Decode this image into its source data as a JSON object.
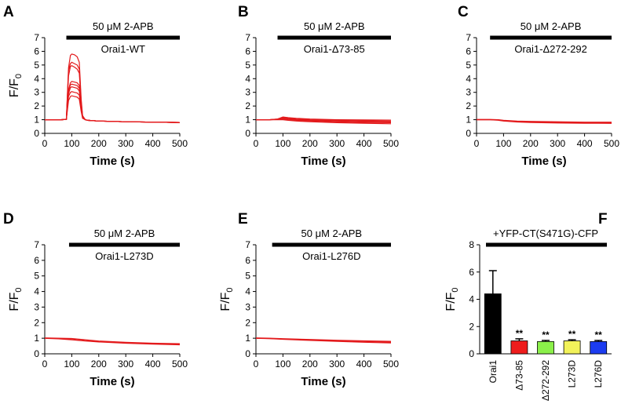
{
  "colors": {
    "trace": "#e31a1c",
    "axis": "#000000"
  },
  "chart_data": [
    {
      "type": "line",
      "panel_letter": "A",
      "treatment": "50 μM 2-APB",
      "construct": "Orai1-WT",
      "xlabel": "Time (s)",
      "ylabel": "F/F",
      "ylabel_sub": "0",
      "xlim": [
        0,
        500
      ],
      "ylim": [
        0,
        7
      ],
      "xticks": [
        "0",
        "100",
        "200",
        "300",
        "400",
        "500"
      ],
      "yticks": [
        "0",
        "1",
        "2",
        "3",
        "4",
        "5",
        "6",
        "7"
      ],
      "treatment_bar": [
        80,
        500
      ],
      "series": [
        {
          "x": [
            0,
            60,
            80,
            88,
            95,
            100,
            110,
            120,
            128,
            135,
            140,
            150,
            160,
            200,
            300,
            400,
            500
          ],
          "y": [
            1.0,
            1.0,
            1.02,
            4.8,
            5.7,
            5.8,
            5.75,
            5.6,
            5.2,
            2.5,
            1.3,
            1.0,
            0.95,
            0.9,
            0.85,
            0.82,
            0.8
          ]
        },
        {
          "x": [
            0,
            60,
            80,
            88,
            95,
            100,
            110,
            120,
            128,
            135,
            140,
            150,
            160,
            200,
            300,
            400,
            500
          ],
          "y": [
            1.0,
            1.0,
            1.02,
            4.6,
            5.1,
            5.2,
            5.1,
            5.0,
            4.7,
            2.3,
            1.2,
            1.0,
            0.95,
            0.9,
            0.85,
            0.82,
            0.8
          ]
        },
        {
          "x": [
            0,
            60,
            80,
            88,
            95,
            100,
            110,
            120,
            128,
            135,
            140,
            150,
            160,
            200,
            300,
            400,
            500
          ],
          "y": [
            1.0,
            1.0,
            1.02,
            4.2,
            4.9,
            4.95,
            4.85,
            4.7,
            4.4,
            2.2,
            1.2,
            1.0,
            0.95,
            0.9,
            0.85,
            0.82,
            0.8
          ]
        },
        {
          "x": [
            0,
            60,
            80,
            88,
            95,
            100,
            110,
            120,
            128,
            135,
            140,
            150,
            160,
            200,
            300,
            400,
            500
          ],
          "y": [
            1.0,
            1.0,
            1.02,
            3.2,
            3.7,
            3.8,
            3.75,
            3.7,
            3.5,
            2.0,
            1.2,
            1.0,
            0.95,
            0.9,
            0.85,
            0.82,
            0.8
          ]
        },
        {
          "x": [
            0,
            60,
            80,
            88,
            95,
            100,
            110,
            120,
            128,
            135,
            140,
            150,
            160,
            200,
            300,
            400,
            500
          ],
          "y": [
            1.0,
            1.0,
            1.02,
            3.1,
            3.55,
            3.6,
            3.55,
            3.5,
            3.3,
            1.9,
            1.2,
            1.0,
            0.95,
            0.9,
            0.85,
            0.82,
            0.8
          ]
        },
        {
          "x": [
            0,
            60,
            80,
            88,
            95,
            100,
            110,
            120,
            128,
            135,
            140,
            150,
            160,
            200,
            300,
            400,
            500
          ],
          "y": [
            1.0,
            1.0,
            1.02,
            2.9,
            3.35,
            3.4,
            3.35,
            3.3,
            3.1,
            1.8,
            1.2,
            1.0,
            0.95,
            0.9,
            0.85,
            0.82,
            0.8
          ]
        },
        {
          "x": [
            0,
            60,
            80,
            88,
            95,
            100,
            110,
            120,
            128,
            135,
            140,
            150,
            160,
            200,
            300,
            400,
            500
          ],
          "y": [
            1.0,
            1.0,
            1.02,
            2.7,
            3.0,
            3.05,
            3.0,
            2.95,
            2.8,
            1.7,
            1.15,
            1.0,
            0.95,
            0.9,
            0.85,
            0.82,
            0.8
          ]
        },
        {
          "x": [
            0,
            60,
            80,
            88,
            95,
            100,
            110,
            120,
            128,
            135,
            140,
            150,
            160,
            200,
            300,
            400,
            500
          ],
          "y": [
            1.0,
            1.0,
            1.02,
            2.4,
            2.7,
            2.75,
            2.7,
            2.65,
            2.5,
            1.6,
            1.1,
            1.0,
            0.95,
            0.9,
            0.85,
            0.82,
            0.8
          ]
        }
      ]
    },
    {
      "type": "line",
      "panel_letter": "B",
      "treatment": "50 μM 2-APB",
      "construct": "Orai1-Δ73-85",
      "xlabel": "Time (s)",
      "ylabel": "",
      "ylabel_sub": "",
      "xlim": [
        0,
        500
      ],
      "ylim": [
        0,
        7
      ],
      "xticks": [
        "0",
        "100",
        "200",
        "300",
        "400",
        "500"
      ],
      "yticks": [
        "0",
        "1",
        "2",
        "3",
        "4",
        "5",
        "6",
        "7"
      ],
      "treatment_bar": [
        80,
        500
      ],
      "series": [
        {
          "x": [
            0,
            50,
            80,
            100,
            120,
            150,
            200,
            300,
            400,
            500
          ],
          "y": [
            1.0,
            1.0,
            1.05,
            1.2,
            1.15,
            1.1,
            1.05,
            1.0,
            0.98,
            0.97
          ]
        },
        {
          "x": [
            0,
            50,
            80,
            100,
            120,
            150,
            200,
            300,
            400,
            500
          ],
          "y": [
            1.0,
            1.0,
            1.05,
            1.15,
            1.1,
            1.05,
            1.0,
            0.95,
            0.92,
            0.9
          ]
        },
        {
          "x": [
            0,
            50,
            80,
            100,
            120,
            150,
            200,
            300,
            400,
            500
          ],
          "y": [
            1.0,
            1.0,
            1.03,
            1.1,
            1.05,
            1.0,
            0.95,
            0.9,
            0.86,
            0.84
          ]
        },
        {
          "x": [
            0,
            50,
            80,
            100,
            120,
            150,
            200,
            300,
            400,
            500
          ],
          "y": [
            1.0,
            1.0,
            1.02,
            1.05,
            1.0,
            0.95,
            0.9,
            0.84,
            0.8,
            0.78
          ]
        },
        {
          "x": [
            0,
            50,
            80,
            100,
            120,
            150,
            200,
            300,
            400,
            500
          ],
          "y": [
            1.0,
            1.0,
            1.0,
            1.0,
            0.95,
            0.9,
            0.85,
            0.78,
            0.74,
            0.7
          ]
        }
      ]
    },
    {
      "type": "line",
      "panel_letter": "C",
      "treatment": "50 μM 2-APB",
      "construct": "Orai1-Δ272-292",
      "xlabel": "Time (s)",
      "ylabel": "",
      "ylabel_sub": "",
      "xlim": [
        0,
        500
      ],
      "ylim": [
        0,
        7
      ],
      "xticks": [
        "0",
        "100",
        "200",
        "300",
        "400",
        "500"
      ],
      "yticks": [
        "0",
        "1",
        "2",
        "3",
        "4",
        "5",
        "6",
        "7"
      ],
      "treatment_bar": [
        50,
        500
      ],
      "series": [
        {
          "x": [
            0,
            50,
            80,
            100,
            150,
            200,
            300,
            400,
            500
          ],
          "y": [
            1.02,
            1.02,
            1.0,
            0.95,
            0.9,
            0.88,
            0.85,
            0.82,
            0.82
          ]
        },
        {
          "x": [
            0,
            50,
            80,
            100,
            150,
            200,
            300,
            400,
            500
          ],
          "y": [
            1.0,
            1.0,
            0.98,
            0.92,
            0.86,
            0.83,
            0.8,
            0.78,
            0.77
          ]
        },
        {
          "x": [
            0,
            50,
            80,
            100,
            150,
            200,
            300,
            400,
            500
          ],
          "y": [
            0.99,
            0.99,
            0.96,
            0.9,
            0.83,
            0.8,
            0.76,
            0.74,
            0.73
          ]
        }
      ]
    },
    {
      "type": "line",
      "panel_letter": "D",
      "treatment": "50 μM 2-APB",
      "construct": "Orai1-L273D",
      "xlabel": "Time (s)",
      "ylabel": "F/F",
      "ylabel_sub": "0",
      "xlim": [
        0,
        500
      ],
      "ylim": [
        0,
        7
      ],
      "xticks": [
        "0",
        "100",
        "200",
        "300",
        "400",
        "500"
      ],
      "yticks": [
        "0",
        "1",
        "2",
        "3",
        "4",
        "5",
        "6",
        "7"
      ],
      "treatment_bar": [
        90,
        500
      ],
      "series": [
        {
          "x": [
            0,
            50,
            100,
            150,
            200,
            300,
            400,
            500
          ],
          "y": [
            1.02,
            1.0,
            0.98,
            0.9,
            0.82,
            0.74,
            0.68,
            0.65
          ]
        },
        {
          "x": [
            0,
            50,
            100,
            150,
            200,
            300,
            400,
            500
          ],
          "y": [
            1.0,
            0.98,
            0.92,
            0.84,
            0.78,
            0.7,
            0.64,
            0.61
          ]
        },
        {
          "x": [
            0,
            50,
            100,
            150,
            200,
            300,
            400,
            500
          ],
          "y": [
            0.99,
            0.96,
            0.9,
            0.82,
            0.76,
            0.68,
            0.62,
            0.58
          ]
        }
      ]
    },
    {
      "type": "line",
      "panel_letter": "E",
      "treatment": "50 μM 2-APB",
      "construct": "Orai1-L276D",
      "xlabel": "Time (s)",
      "ylabel": "F/F",
      "ylabel_sub": "0",
      "xlim": [
        0,
        500
      ],
      "ylim": [
        0,
        7
      ],
      "xticks": [
        "0",
        "100",
        "200",
        "300",
        "400",
        "500"
      ],
      "yticks": [
        "0",
        "1",
        "2",
        "3",
        "4",
        "5",
        "6",
        "7"
      ],
      "treatment_bar": [
        60,
        500
      ],
      "series": [
        {
          "x": [
            0,
            50,
            100,
            200,
            300,
            400,
            500
          ],
          "y": [
            1.02,
            1.0,
            0.97,
            0.92,
            0.87,
            0.83,
            0.8
          ]
        },
        {
          "x": [
            0,
            50,
            100,
            200,
            300,
            400,
            500
          ],
          "y": [
            1.0,
            0.98,
            0.95,
            0.89,
            0.84,
            0.79,
            0.75
          ]
        },
        {
          "x": [
            0,
            50,
            100,
            200,
            300,
            400,
            500
          ],
          "y": [
            0.99,
            0.97,
            0.93,
            0.86,
            0.8,
            0.74,
            0.7
          ]
        }
      ]
    },
    {
      "type": "bar",
      "panel_letter": "F",
      "treatment": "+YFP-CT(S471G)-CFP",
      "ylabel": "F/F",
      "ylabel_sub": "0",
      "ylim": [
        0,
        8
      ],
      "yticks": [
        "0",
        "2",
        "4",
        "6",
        "8"
      ],
      "categories": [
        "Orai1",
        "Δ73-85",
        "Δ272-292",
        "L273D",
        "L276D"
      ],
      "values": [
        4.4,
        0.95,
        0.9,
        0.95,
        0.9
      ],
      "errors": [
        1.7,
        0.15,
        0.08,
        0.08,
        0.08
      ],
      "bar_colors": [
        "#000000",
        "#ee1c1c",
        "#8bf04a",
        "#f2f25a",
        "#1c3cf0"
      ],
      "significance": [
        "",
        "**",
        "**",
        "**",
        "**"
      ]
    }
  ]
}
